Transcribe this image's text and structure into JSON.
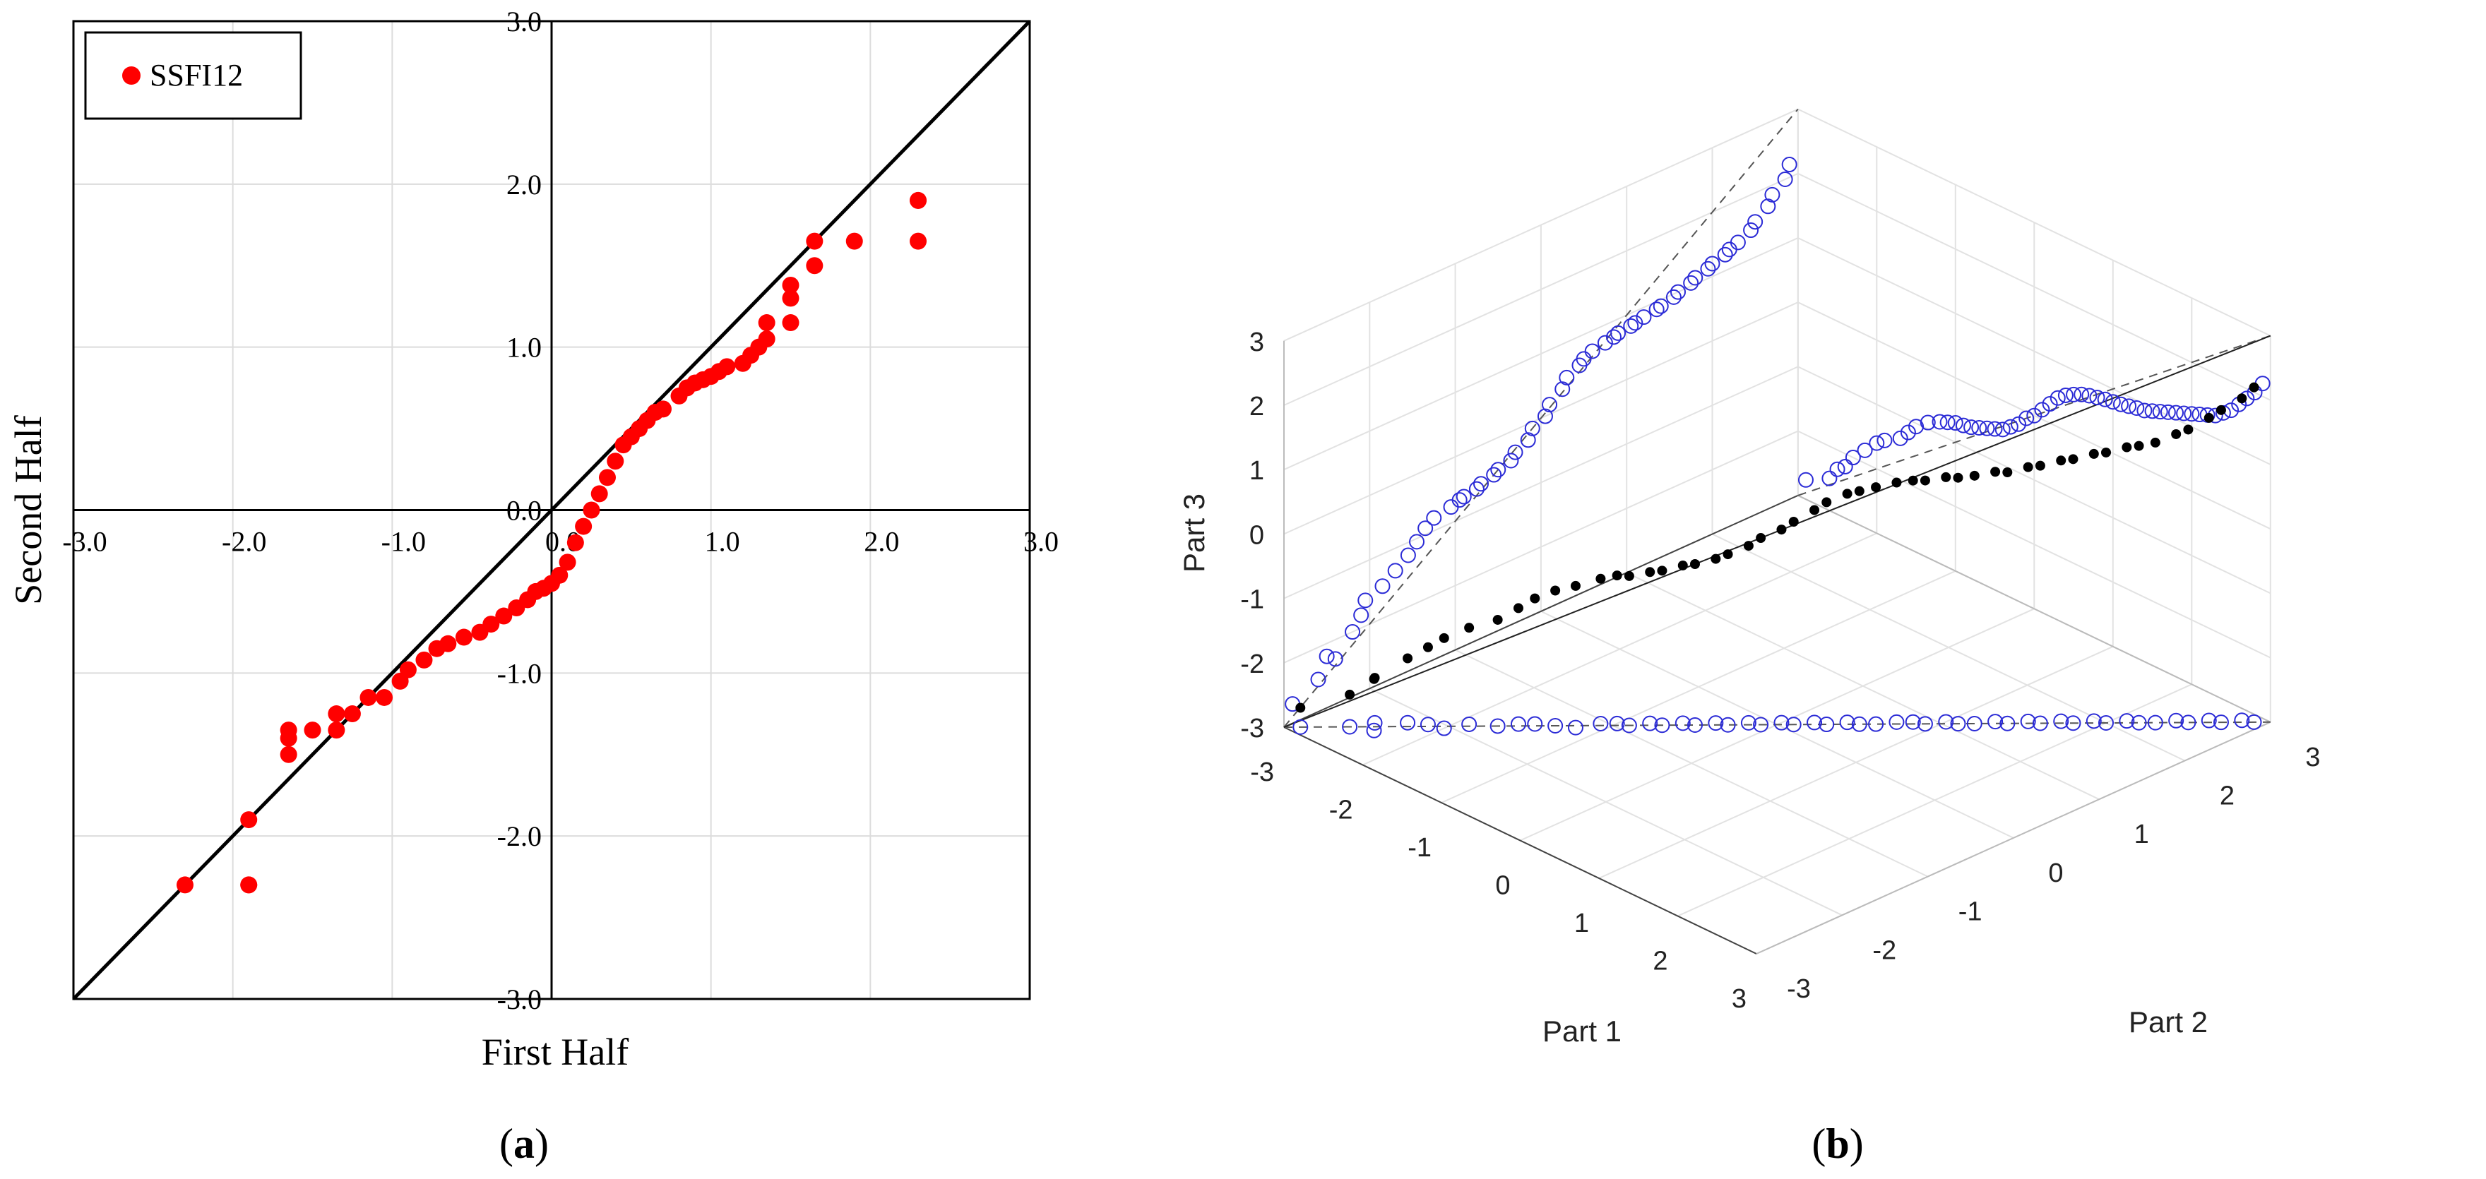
{
  "chart_data": [
    {
      "type": "scatter",
      "panel_label": "(a)",
      "panel_letter": "a",
      "xlabel": "First Half",
      "ylabel": "Second Half",
      "xlim": [
        -3,
        3
      ],
      "ylim": [
        -3,
        3
      ],
      "x_ticks": [
        "-3.0",
        "-2.0",
        "-1.0",
        "0.0",
        "1.0",
        "2.0",
        "3.0"
      ],
      "y_ticks": [
        "-3.0",
        "-2.0",
        "-1.0",
        "0.0",
        "1.0",
        "2.0",
        "3.0"
      ],
      "grid": true,
      "legend_position": "top-left",
      "reference_line": "y = x",
      "color": "#ff0000",
      "series": [
        {
          "name": "SSFI12",
          "x": [
            -2.3,
            -1.9,
            -1.9,
            -1.9,
            -1.65,
            -1.65,
            -1.65,
            -1.5,
            -1.35,
            -1.35,
            -1.25,
            -1.15,
            -1.05,
            -0.95,
            -0.9,
            -0.8,
            -0.72,
            -0.65,
            -0.55,
            -0.45,
            -0.38,
            -0.3,
            -0.22,
            -0.15,
            -0.1,
            -0.05,
            0.0,
            0.05,
            0.1,
            0.15,
            0.2,
            0.25,
            0.3,
            0.35,
            0.4,
            0.45,
            0.5,
            0.55,
            0.6,
            0.65,
            0.7,
            0.8,
            0.85,
            0.9,
            0.95,
            1.0,
            1.05,
            1.1,
            1.2,
            1.25,
            1.3,
            1.35,
            1.35,
            1.5,
            1.5,
            1.5,
            1.65,
            1.65,
            1.9,
            2.3,
            2.3,
            2.3
          ],
          "y": [
            -2.3,
            -2.3,
            -2.3,
            -1.9,
            -1.5,
            -1.4,
            -1.35,
            -1.35,
            -1.35,
            -1.25,
            -1.25,
            -1.15,
            -1.15,
            -1.05,
            -0.98,
            -0.92,
            -0.85,
            -0.82,
            -0.78,
            -0.75,
            -0.7,
            -0.65,
            -0.6,
            -0.55,
            -0.5,
            -0.48,
            -0.45,
            -0.4,
            -0.32,
            -0.2,
            -0.1,
            0.0,
            0.1,
            0.2,
            0.3,
            0.4,
            0.45,
            0.5,
            0.55,
            0.6,
            0.62,
            0.7,
            0.75,
            0.78,
            0.8,
            0.82,
            0.85,
            0.88,
            0.9,
            0.95,
            1.0,
            1.05,
            1.15,
            1.15,
            1.3,
            1.38,
            1.5,
            1.65,
            1.65,
            1.65,
            1.9,
            1.9
          ]
        }
      ]
    },
    {
      "type": "scatter",
      "subtype": "3d",
      "panel_label": "(b)",
      "panel_letter": "b",
      "xlabel": "Part 1",
      "ylabel": "Part 2",
      "zlabel": "Part 3",
      "xlim": [
        -3,
        3
      ],
      "ylim": [
        -3,
        3
      ],
      "zlim": [
        -3,
        3
      ],
      "x_ticks": [
        "-3",
        "-2",
        "-1",
        "0",
        "1",
        "2",
        "3"
      ],
      "y_ticks": [
        "-3",
        "-2",
        "-1",
        "0",
        "1",
        "2",
        "3"
      ],
      "z_ticks": [
        "-3",
        "-2",
        "-1",
        "0",
        "1",
        "2",
        "3"
      ],
      "grid": true,
      "points_color": "#000000",
      "projection_color": "#2b2bd6",
      "series": [
        {
          "x": [
            -2.9,
            -2.6,
            -2.5,
            -2.4,
            -2.3,
            -2.15,
            -2.0,
            -1.9,
            -1.7,
            -1.6,
            -1.5,
            -1.35,
            -1.2,
            -1.1,
            -1.0,
            -0.9,
            -0.8,
            -0.7,
            -0.6,
            -0.5,
            -0.4,
            -0.3,
            -0.2,
            -0.1,
            0.0,
            0.1,
            0.2,
            0.3,
            0.4,
            0.5,
            0.6,
            0.7,
            0.8,
            0.9,
            1.0,
            1.1,
            1.2,
            1.3,
            1.4,
            1.5,
            1.6,
            1.7,
            1.8,
            1.9,
            2.0,
            2.1,
            2.2,
            2.3,
            2.4,
            2.5,
            2.6,
            2.7,
            2.8,
            2.9
          ],
          "y": [
            -2.9,
            -2.6,
            -2.4,
            -2.5,
            -2.2,
            -2.1,
            -2.05,
            -1.85,
            -1.7,
            -1.55,
            -1.45,
            -1.35,
            -1.25,
            -1.05,
            -0.95,
            -0.9,
            -0.75,
            -0.7,
            -0.55,
            -0.5,
            -0.35,
            -0.3,
            -0.15,
            -0.1,
            0.05,
            0.1,
            0.25,
            0.3,
            0.45,
            0.5,
            0.6,
            0.75,
            0.85,
            0.9,
            1.05,
            1.1,
            1.2,
            1.35,
            1.4,
            1.55,
            1.6,
            1.75,
            1.8,
            1.95,
            2.0,
            2.15,
            2.2,
            2.3,
            2.45,
            2.5,
            2.65,
            2.7,
            2.85,
            2.9
          ],
          "z": [
            -2.7,
            -2.5,
            -2.3,
            -2.2,
            -2.0,
            -1.8,
            -1.6,
            -1.5,
            -1.35,
            -1.2,
            -1.05,
            -0.9,
            -0.8,
            -0.75,
            -0.7,
            -0.68,
            -0.65,
            -0.6,
            -0.55,
            -0.5,
            -0.45,
            -0.35,
            -0.25,
            -0.1,
            0.0,
            0.15,
            0.3,
            0.45,
            0.55,
            0.62,
            0.68,
            0.72,
            0.75,
            0.78,
            0.8,
            0.82,
            0.85,
            0.88,
            0.9,
            0.95,
            1.0,
            1.05,
            1.1,
            1.15,
            1.2,
            1.25,
            1.3,
            1.35,
            1.45,
            1.55,
            1.7,
            1.85,
            2.0,
            2.2
          ]
        }
      ]
    }
  ]
}
